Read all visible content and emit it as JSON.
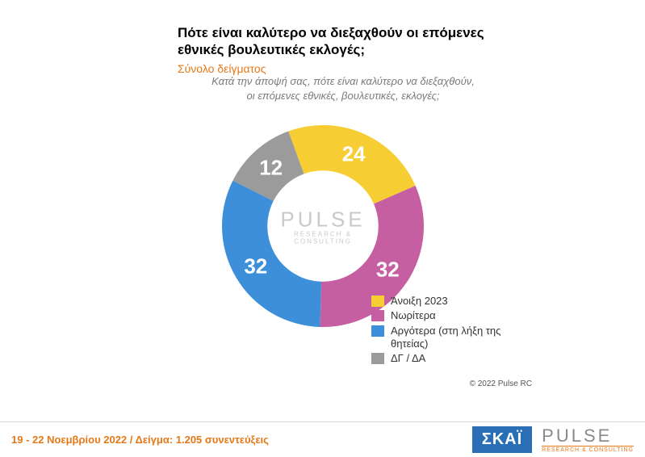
{
  "header": {
    "title": "Πότε είναι καλύτερο να διεξαχθούν οι επόμενες εθνικές βουλευτικές εκλογές;",
    "subtitle": "Σύνολο δείγματος",
    "title_fontsize": 17,
    "title_color": "#000000",
    "subtitle_fontsize": 14,
    "subtitle_color": "#e67817"
  },
  "question": {
    "text": "Κατά την άποψή σας, πότε είναι καλύτερο να διεξαχθούν, οι επόμενες εθνικές, βουλευτικές, εκλογές;",
    "fontsize": 13,
    "color": "#7a7a7a"
  },
  "chart": {
    "type": "donut",
    "inner_radius_ratio": 0.55,
    "background_color": "#ffffff",
    "label_fontsize": 26,
    "label_color": "#ffffff",
    "start_angle_deg": -20,
    "slices": [
      {
        "label": "Άνοιξη 2023",
        "value": 24,
        "color": "#f6ce33"
      },
      {
        "label": "Νωρίτερα",
        "value": 32,
        "color": "#c65ea2"
      },
      {
        "label": "Αργότερα (στη λήξη της θητείας)",
        "value": 32,
        "color": "#3d8fd9"
      },
      {
        "label": "ΔΓ / ΔΑ",
        "value": 12,
        "color": "#9b9b9b"
      }
    ],
    "center_logo": {
      "line1": "PULSE",
      "line2": "RESEARCH & CONSULTING",
      "line1_fontsize": 26,
      "color": "#c9c9c9"
    }
  },
  "legend": {
    "fontsize": 13,
    "swatch_size": 16,
    "text_color": "#333333"
  },
  "copyright": {
    "text": "© 2022 Pulse RC",
    "fontsize": 10,
    "color": "#555555"
  },
  "footer": {
    "date_sample": "19 - 22  Νοεμβρίου  2022  /  Δείγμα:  1.205 συνεντεύξεις",
    "fontsize": 13,
    "color": "#e67817",
    "skai_label": "ΣΚΑΪ",
    "skai_bg": "#2a6fb5",
    "skai_fontsize": 20,
    "pulse_line1": "PULSE",
    "pulse_line2": "RESEARCH & CONSULTING",
    "pulse_line1_fontsize": 22,
    "pulse_line2_fontsize": 7
  }
}
